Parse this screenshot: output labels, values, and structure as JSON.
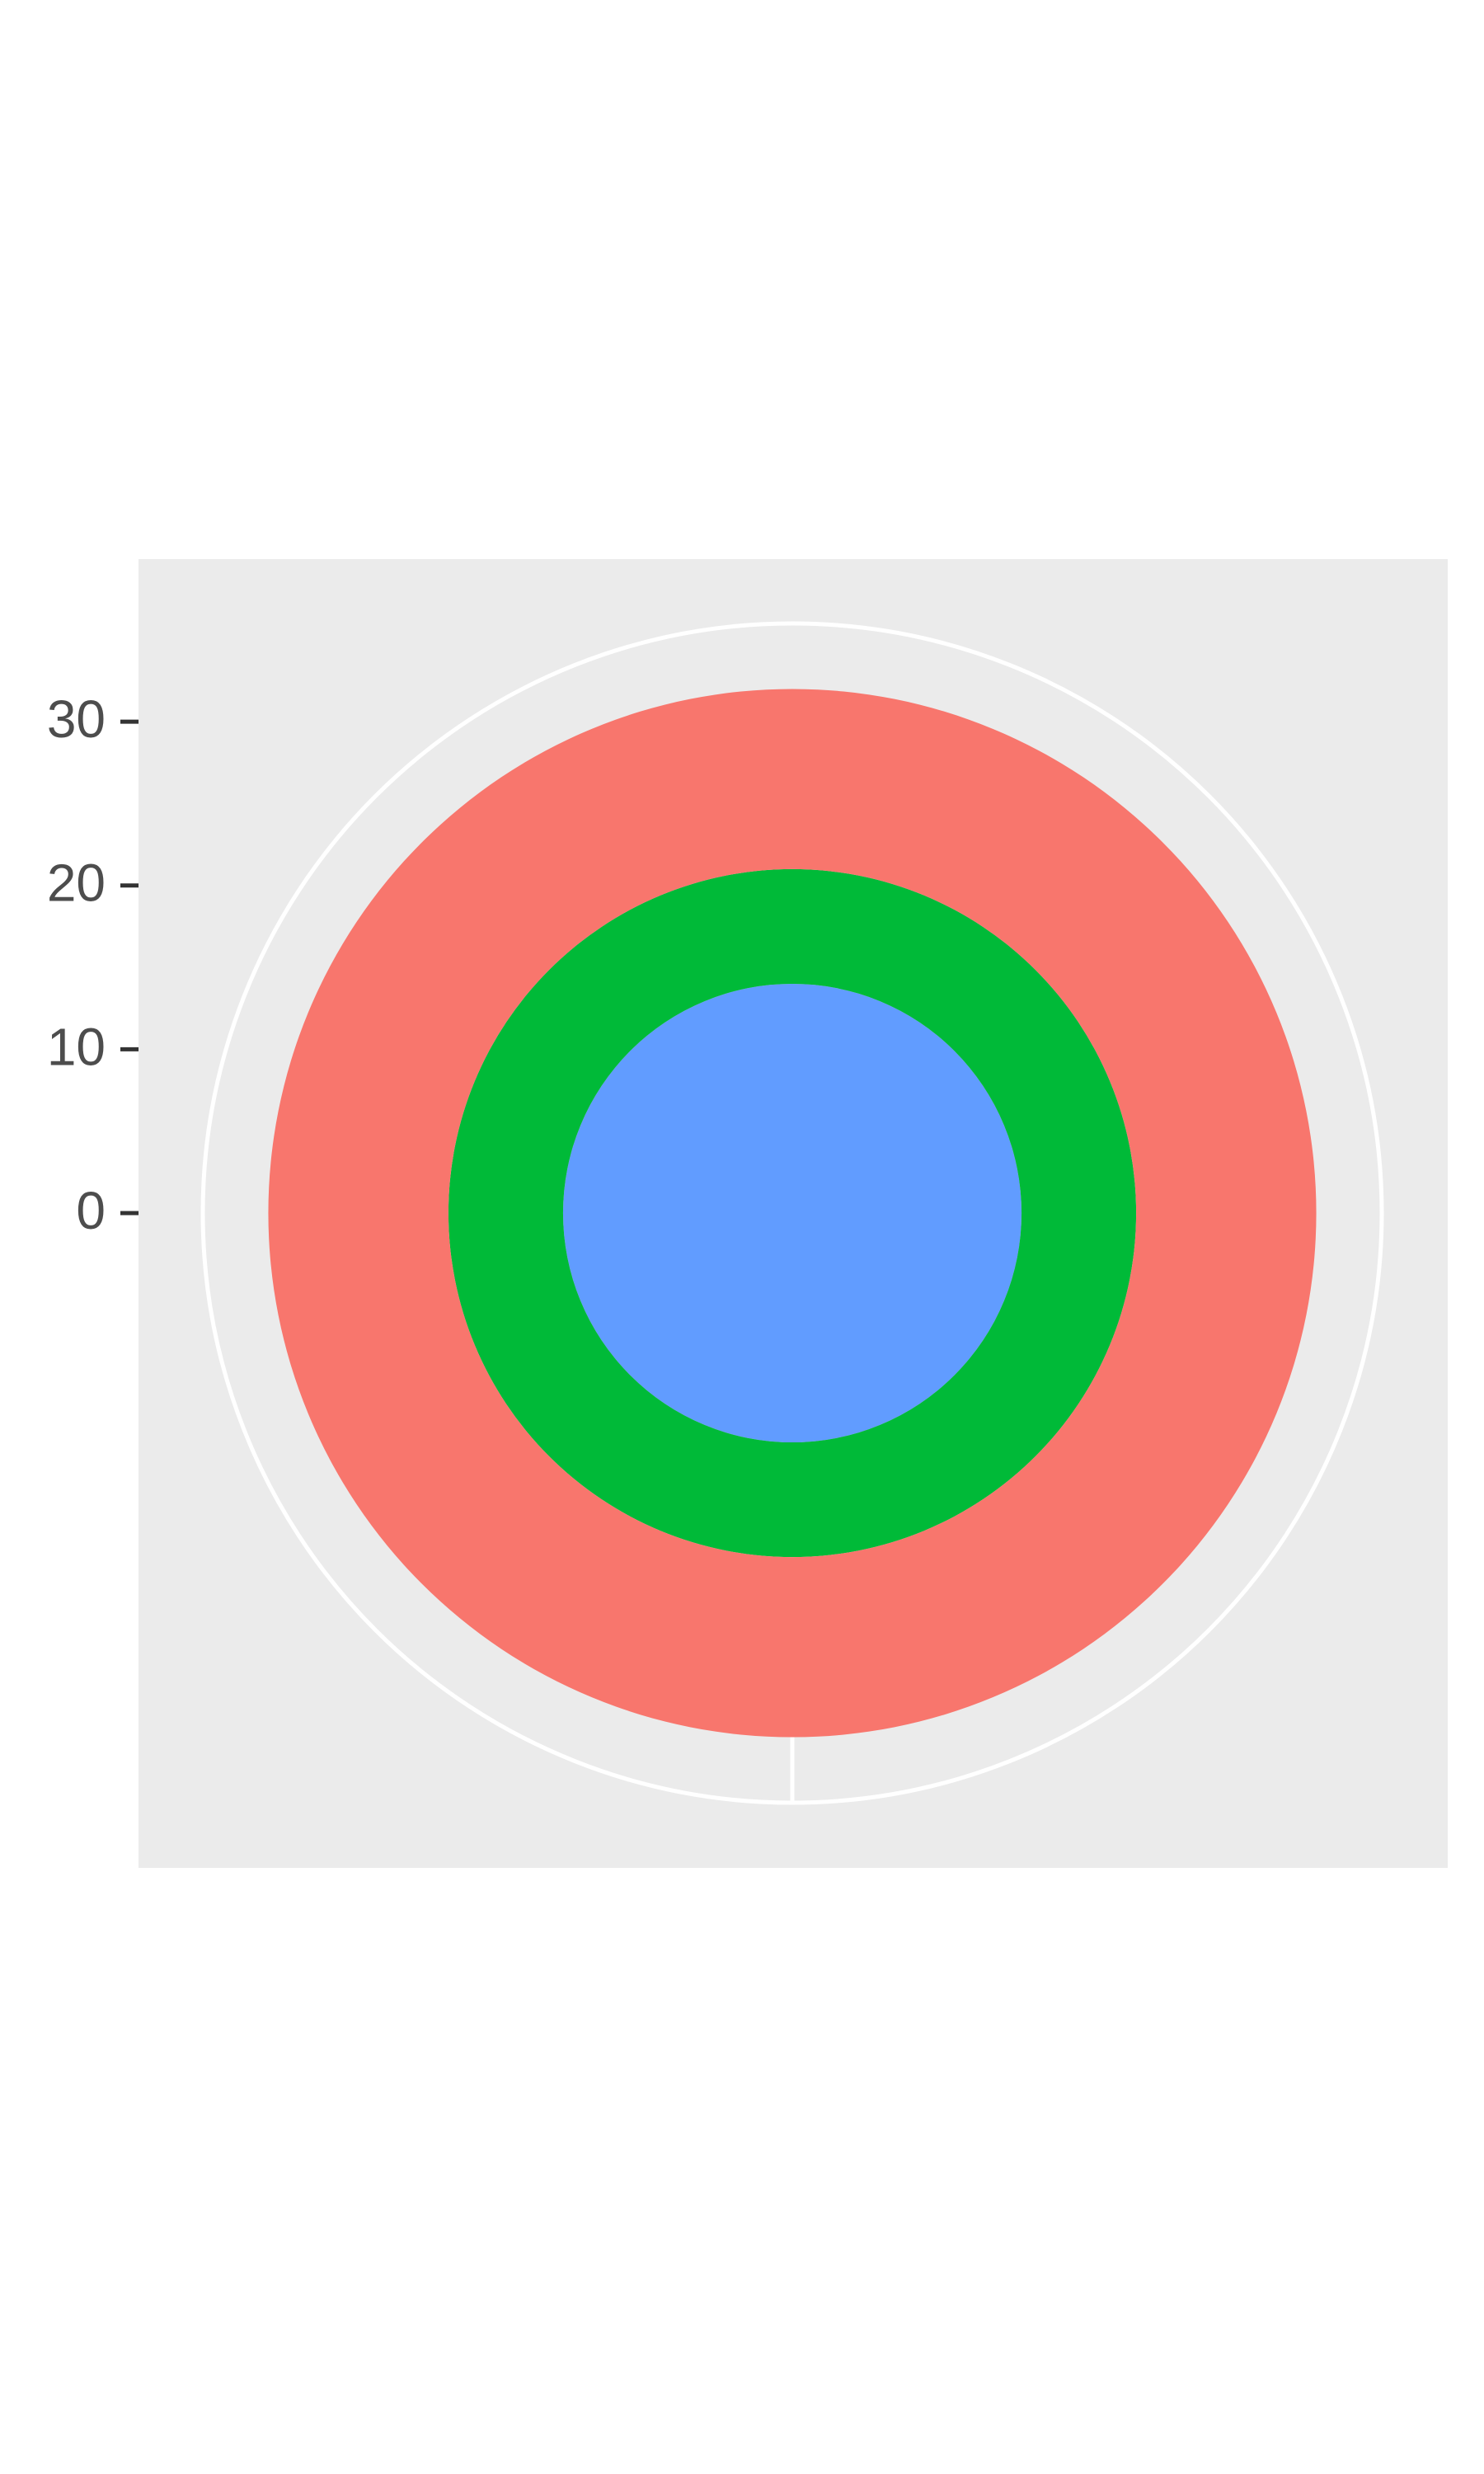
{
  "chart_data": {
    "type": "polar",
    "series": [
      {
        "color": "#619cff",
        "values": [
          14
        ]
      },
      {
        "color": "#00ba38",
        "values": [
          7
        ]
      },
      {
        "color": "#f8766d",
        "values": [
          11
        ]
      }
    ],
    "ylim": [
      0,
      36
    ],
    "yticks": [
      0,
      10,
      20,
      30
    ],
    "grid": true,
    "background": "#ebebeb"
  }
}
